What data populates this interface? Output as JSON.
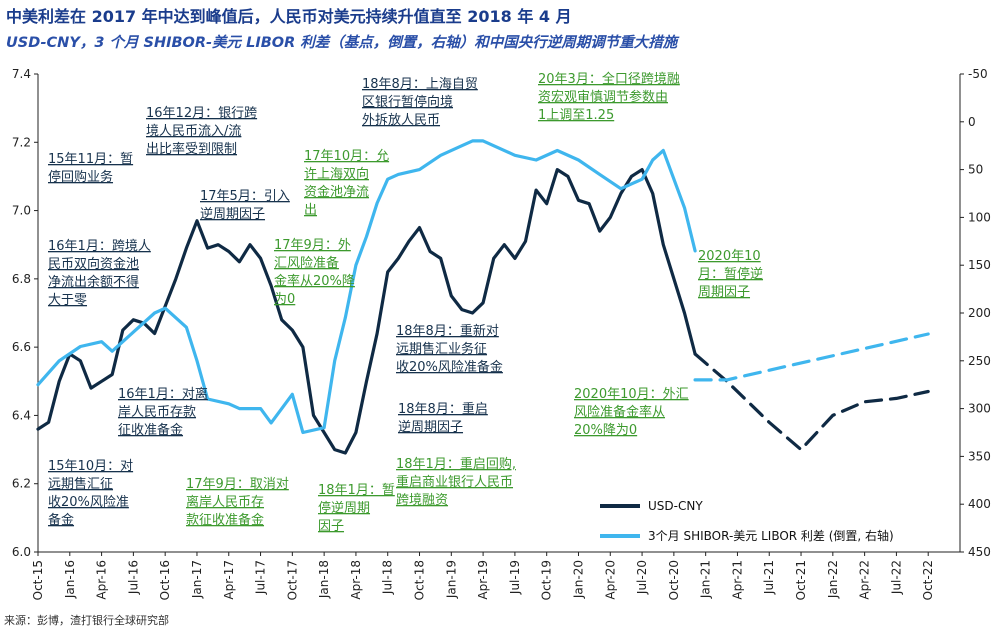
{
  "header": {
    "title": "中美利差在 2017 年中达到峰值后，人民币对美元持续升值直至 2018 年 4 月",
    "subtitle": "USD-CNY，3 个月 SHIBOR-美元 LIBOR 利差（基点，倒置，右轴）和中国央行逆周期调节重大措施",
    "source": "来源：彭博，渣打银行全球研究部"
  },
  "colors": {
    "usdcny": "#0f2a44",
    "spread": "#3fb6ee",
    "green_text": "#3d9a2e",
    "dark_text": "#17324d"
  },
  "chart_data": {
    "type": "line",
    "x_tick_labels": [
      "Oct-15",
      "Jan-16",
      "Apr-16",
      "Jul-16",
      "Oct-16",
      "Jan-17",
      "Apr-17",
      "Jul-17",
      "Oct-17",
      "Jan-18",
      "Apr-18",
      "Jul-18",
      "Oct-18",
      "Jan-19",
      "Apr-19",
      "Jul-19",
      "Oct-19",
      "Jan-20",
      "Apr-20",
      "Jul-20",
      "Oct-20",
      "Jan-21",
      "Apr-21",
      "Jul-21",
      "Oct-21",
      "Jan-22",
      "Apr-22",
      "Jul-22",
      "Oct-22"
    ],
    "x_start": "2015-10",
    "left_axis": {
      "label": "USD-CNY",
      "min": 6.0,
      "max": 7.4,
      "ticks": [
        "6.0",
        "6.2",
        "6.4",
        "6.6",
        "6.8",
        "7.0",
        "7.2",
        "7.4"
      ]
    },
    "right_axis": {
      "label": "3个月 SHIBOR-美元 LIBOR 利差 (倒置, 右轴)",
      "inverted": true,
      "min": -50,
      "max": 450,
      "ticks": [
        "-50",
        "0",
        "50",
        "100",
        "150",
        "200",
        "250",
        "300",
        "350",
        "400",
        "450"
      ]
    },
    "series": [
      {
        "name": "USD-CNY",
        "axis": "left",
        "style": "solid",
        "x_months": [
          0,
          1,
          2,
          3,
          4,
          5,
          6,
          7,
          8,
          9,
          10,
          11,
          12,
          13,
          14,
          15,
          16,
          17,
          18,
          19,
          20,
          21,
          22,
          23,
          24,
          25,
          26,
          27,
          28,
          29,
          30,
          31,
          32,
          33,
          34,
          35,
          36,
          37,
          38,
          39,
          40,
          41,
          42,
          43,
          44,
          45,
          46,
          47,
          48,
          49,
          50,
          51,
          52,
          53,
          54,
          55,
          56,
          57,
          58,
          59,
          60,
          61,
          62
        ],
        "values": [
          6.36,
          6.38,
          6.5,
          6.58,
          6.56,
          6.48,
          6.5,
          6.52,
          6.65,
          6.68,
          6.67,
          6.64,
          6.72,
          6.8,
          6.89,
          6.97,
          6.89,
          6.9,
          6.88,
          6.85,
          6.9,
          6.86,
          6.78,
          6.68,
          6.65,
          6.6,
          6.4,
          6.35,
          6.3,
          6.29,
          6.35,
          6.5,
          6.64,
          6.82,
          6.86,
          6.91,
          6.95,
          6.88,
          6.86,
          6.75,
          6.71,
          6.7,
          6.73,
          6.86,
          6.9,
          6.86,
          6.91,
          7.06,
          7.02,
          7.12,
          7.1,
          7.03,
          7.02,
          6.94,
          6.98,
          7.05,
          7.1,
          7.12,
          7.05,
          6.9,
          6.8,
          6.7,
          6.58
        ]
      },
      {
        "name": "USD-CNY forecast",
        "axis": "left",
        "style": "dashed",
        "x_months": [
          62,
          65,
          69,
          72,
          75,
          78,
          81,
          84
        ],
        "values": [
          6.58,
          6.5,
          6.38,
          6.3,
          6.4,
          6.44,
          6.45,
          6.47
        ]
      },
      {
        "name": "3个月 SHIBOR-美元 LIBOR 利差 (倒置, 右轴)",
        "axis": "right",
        "style": "solid",
        "x_months": [
          0,
          2,
          4,
          6,
          7,
          9,
          11,
          12,
          14,
          15,
          16,
          18,
          19,
          21,
          22,
          24,
          25,
          27,
          28,
          29,
          30,
          31,
          32,
          33,
          34,
          36,
          38,
          40,
          41,
          42,
          45,
          47,
          49,
          51,
          53,
          55,
          57,
          58,
          59,
          61,
          62
        ],
        "values": [
          275,
          250,
          235,
          230,
          240,
          220,
          200,
          195,
          215,
          250,
          290,
          295,
          300,
          300,
          315,
          285,
          325,
          320,
          250,
          205,
          150,
          120,
          85,
          60,
          55,
          50,
          35,
          25,
          20,
          20,
          35,
          40,
          30,
          40,
          55,
          70,
          60,
          40,
          30,
          90,
          135
        ]
      },
      {
        "name": "3个月 SHIBOR-美元 LIBOR 利差 forecast",
        "axis": "right",
        "style": "dashed",
        "x_months": [
          62,
          65,
          84
        ],
        "values": [
          270,
          270,
          222
        ]
      }
    ],
    "annotations": [
      {
        "color": "dark",
        "lines": [
          "15年11月：暂",
          "停回购业务"
        ]
      },
      {
        "color": "dark",
        "lines": [
          "16年1月：跨境人",
          "民币双向资金池",
          "净流出余额不得",
          "大于零"
        ]
      },
      {
        "color": "dark",
        "lines": [
          "16年12月：银行跨",
          "境人民币流入/流",
          "出比率受到限制"
        ]
      },
      {
        "color": "dark",
        "lines": [
          "17年5月：引入",
          "逆周期因子"
        ]
      },
      {
        "color": "dark",
        "lines": [
          "16年1月：对离",
          "岸人民币存款",
          "征收准备金"
        ]
      },
      {
        "color": "dark",
        "lines": [
          "15年10月：对",
          "远期售汇征",
          "收20%风险准",
          "备金"
        ]
      },
      {
        "color": "green",
        "lines": [
          "17年9月：取消对",
          "离岸人民币存",
          "款征收准备金"
        ]
      },
      {
        "color": "green",
        "lines": [
          "17年10月：允",
          "许上海双向",
          "资金池净流",
          "出"
        ]
      },
      {
        "color": "green",
        "lines": [
          "17年9月：外",
          "汇风险准备",
          "金率从20%降",
          "为0"
        ]
      },
      {
        "color": "dark",
        "lines": [
          "18年8月：上海自贸",
          "区银行暂停向境",
          "外拆放人民币"
        ]
      },
      {
        "color": "green",
        "lines": [
          "20年3月：全口径跨境融",
          "资宏观审慎调节参数由",
          "1上调至1.25"
        ]
      },
      {
        "color": "dark",
        "lines": [
          "18年8月：重新对",
          "远期售汇业务征",
          "收20%风险准备金"
        ]
      },
      {
        "color": "dark",
        "lines": [
          "18年8月：重启",
          "逆周期因子"
        ]
      },
      {
        "color": "green",
        "lines": [
          "18年1月：重启回购,",
          "重启商业银行人民币",
          "跨境融资"
        ]
      },
      {
        "color": "green",
        "lines": [
          "18年1月：暂",
          "停逆周期",
          "因子"
        ]
      },
      {
        "color": "green",
        "lines": [
          "2020年10",
          "月：暂停逆",
          "周期因子"
        ]
      },
      {
        "color": "green",
        "lines": [
          "2020年10月：外汇",
          "风险准备金率从",
          "20%降为0"
        ]
      }
    ],
    "legend": [
      "USD-CNY",
      "3个月 SHIBOR-美元 LIBOR 利差 (倒置, 右轴)"
    ]
  }
}
